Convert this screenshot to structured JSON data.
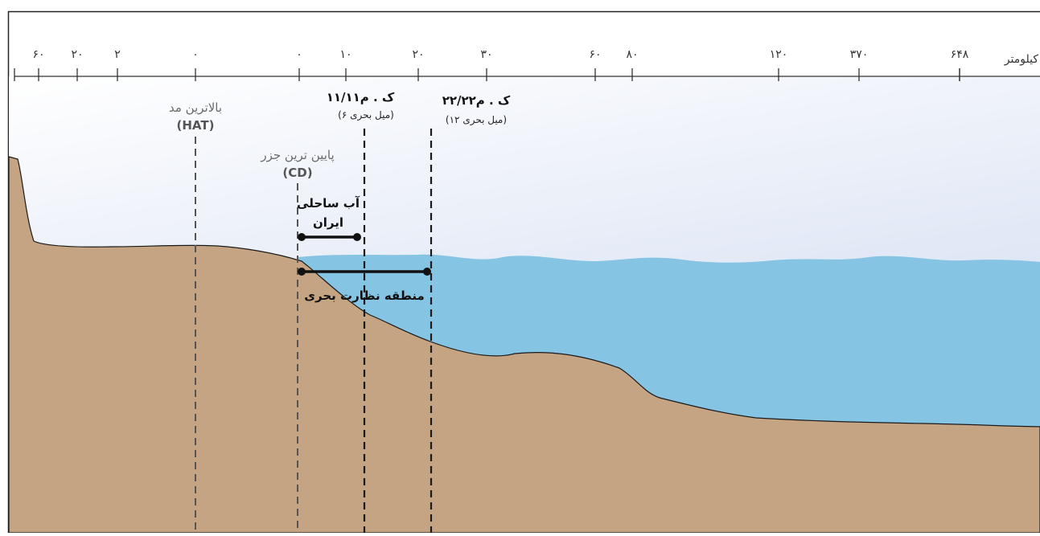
{
  "scale": {
    "unit_label": "کیلومتر",
    "ticks": [
      "۶۰",
      "۲۰",
      "۲",
      "۰",
      "۰",
      "۱۰",
      "۲۰",
      "۳۰",
      "۶۰",
      "۸۰",
      "۱۲۰",
      "۳۷۰",
      "۶۴۸"
    ]
  },
  "labels": {
    "hat_line1": "بالاترین مد",
    "hat_line2": "(HAT)",
    "cd_line1": "پایین ترین جزر",
    "cd_line2": "(CD)",
    "limit11_title": "۱۱/۱۱ک . م",
    "limit11_sub": "(۶ میل بحری)",
    "limit22_title": "۲۲/۲۲ک . م",
    "limit22_sub": "(۱۲ میل بحری)",
    "coastal_line1": "آب ساحلی",
    "coastal_line2": "ایران",
    "supervision": "منطقه نظارت بحری"
  },
  "colors": {
    "land": "#c4a482",
    "sea": "#86c4e4",
    "sky_top": "#ffffff",
    "sky_bottom": "#cfdaf0",
    "outline": "#1a1a1a",
    "dashed": "#555555"
  }
}
